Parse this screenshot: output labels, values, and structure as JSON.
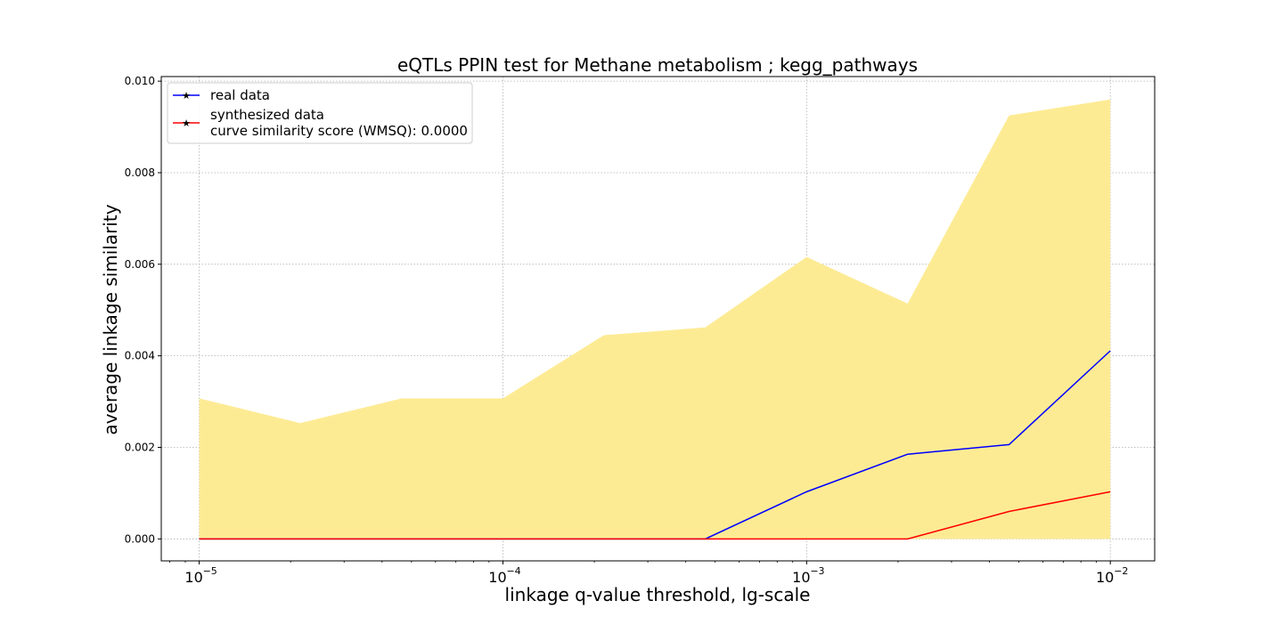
{
  "chart_data": {
    "type": "line",
    "title": "eQTLs PPIN test for Methane metabolism ; kegg_pathways",
    "xlabel": "linkage q-value threshold, lg-scale",
    "ylabel": "average linkage similarity",
    "xscale": "log",
    "xlim": [
      7.5e-06,
      0.014
    ],
    "ylim": [
      -0.00048,
      0.0101
    ],
    "grid": true,
    "legend_position": "top-left",
    "x": [
      1e-05,
      2.15e-05,
      4.64e-05,
      0.0001,
      0.000215,
      0.000464,
      0.001,
      0.00215,
      0.00464,
      0.01
    ],
    "x_ticks": [
      {
        "value": 1e-05,
        "base": "10",
        "exp": "−5"
      },
      {
        "value": 0.0001,
        "base": "10",
        "exp": "−4"
      },
      {
        "value": 0.001,
        "base": "10",
        "exp": "−3"
      },
      {
        "value": 0.01,
        "base": "10",
        "exp": "−2"
      }
    ],
    "y_ticks": [
      "0.000",
      "0.002",
      "0.004",
      "0.006",
      "0.008",
      "0.010"
    ],
    "y_tick_values": [
      0,
      0.002,
      0.004,
      0.006,
      0.008,
      0.01
    ],
    "band": {
      "color": "#fdeb94",
      "upper": [
        0.00307,
        0.00253,
        0.00307,
        0.00307,
        0.00445,
        0.00462,
        0.00616,
        0.00514,
        0.00925,
        0.0096
      ],
      "lower": [
        0,
        0,
        0,
        0,
        0,
        0,
        0,
        0,
        0,
        0
      ]
    },
    "series": [
      {
        "name": "real data",
        "color": "#0000ff",
        "values": [
          0,
          0,
          0,
          0,
          0,
          0,
          0.00103,
          0.00185,
          0.00206,
          0.00411
        ]
      },
      {
        "name": "synthesized data",
        "color": "#ff0000",
        "values": [
          0,
          0,
          0,
          0,
          0,
          0,
          0,
          0,
          0.0006,
          0.00103
        ]
      }
    ],
    "legend_extra": "curve similarity score (WMSQ): 0.0000"
  }
}
